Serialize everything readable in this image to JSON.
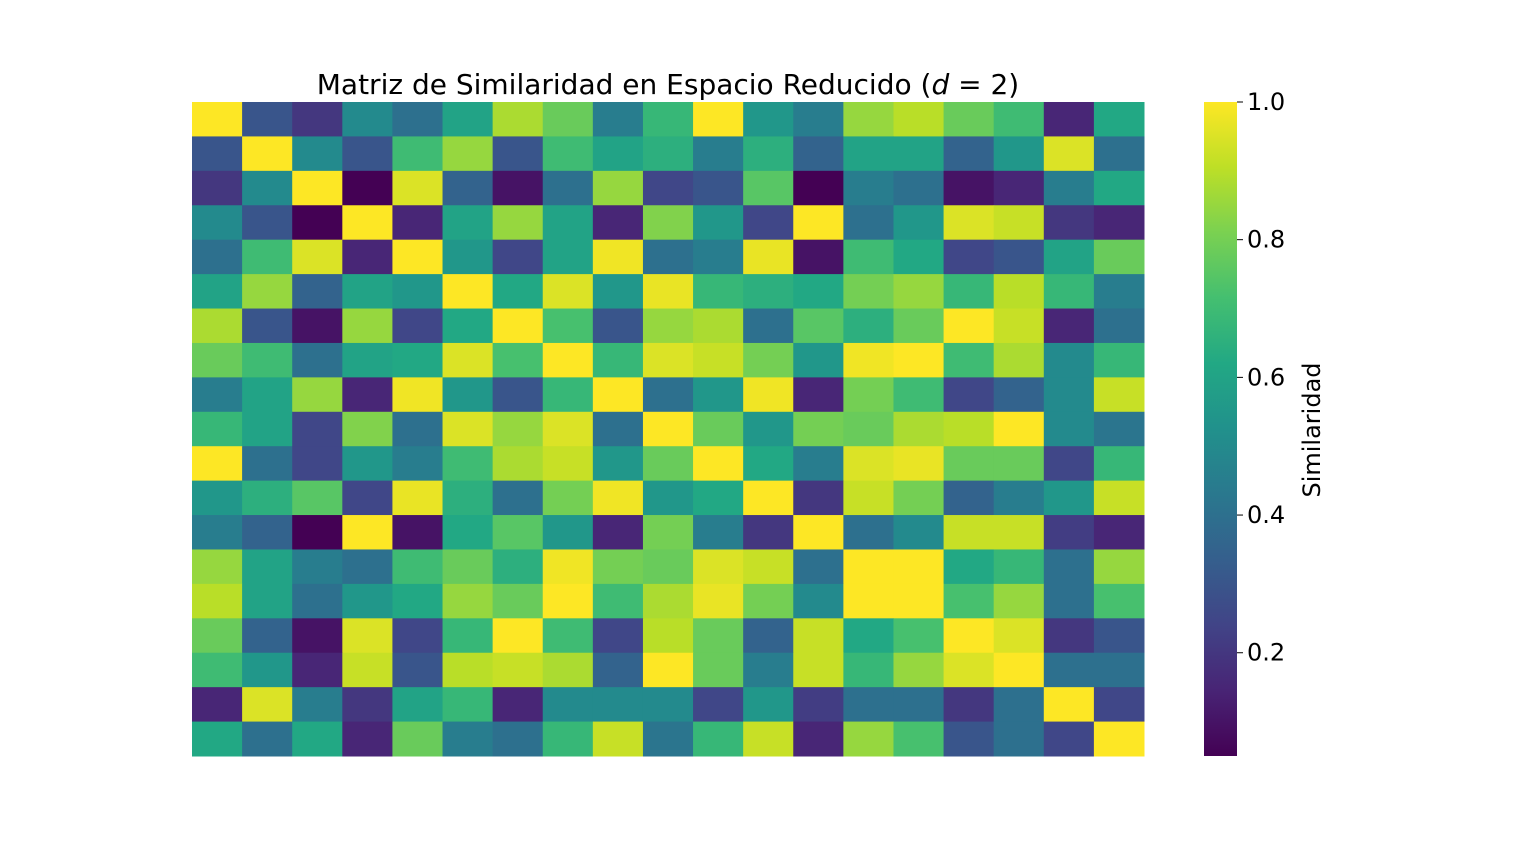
{
  "chart_data": {
    "type": "heatmap",
    "title_prefix": "Matriz de Similaridad en Espacio Reducido (",
    "title_var": "d",
    "title_suffix": " = 2)",
    "xlabel": "",
    "ylabel": "",
    "colormap": "viridis",
    "colorbar": {
      "label": "Similaridad",
      "vmin": 0.05,
      "vmax": 1.0,
      "ticks": [
        0.2,
        0.4,
        0.6,
        0.8,
        1.0
      ],
      "tick_labels": [
        "0.2",
        "0.4",
        "0.6",
        "0.8",
        "1.0"
      ]
    },
    "grid": false,
    "values": [
      [
        1.0,
        0.3,
        0.2,
        0.5,
        0.4,
        0.6,
        0.88,
        0.78,
        0.45,
        0.68,
        1.0,
        0.55,
        0.45,
        0.85,
        0.9,
        0.78,
        0.7,
        0.15,
        0.62
      ],
      [
        0.3,
        1.0,
        0.5,
        0.3,
        0.7,
        0.85,
        0.3,
        0.7,
        0.6,
        0.65,
        0.45,
        0.65,
        0.35,
        0.6,
        0.6,
        0.35,
        0.55,
        0.95,
        0.4
      ],
      [
        0.2,
        0.5,
        1.0,
        0.05,
        0.95,
        0.35,
        0.1,
        0.4,
        0.85,
        0.25,
        0.3,
        0.75,
        0.05,
        0.45,
        0.4,
        0.1,
        0.15,
        0.45,
        0.62
      ],
      [
        0.5,
        0.3,
        0.05,
        1.0,
        0.15,
        0.6,
        0.85,
        0.6,
        0.15,
        0.82,
        0.55,
        0.25,
        1.0,
        0.4,
        0.55,
        0.95,
        0.92,
        0.2,
        0.15
      ],
      [
        0.4,
        0.7,
        0.95,
        0.15,
        1.0,
        0.55,
        0.25,
        0.6,
        0.98,
        0.4,
        0.45,
        0.97,
        0.1,
        0.7,
        0.62,
        0.25,
        0.3,
        0.6,
        0.78
      ],
      [
        0.6,
        0.85,
        0.35,
        0.6,
        0.55,
        1.0,
        0.62,
        0.95,
        0.55,
        0.97,
        0.68,
        0.65,
        0.62,
        0.8,
        0.85,
        0.68,
        0.9,
        0.68,
        0.45
      ],
      [
        0.88,
        0.3,
        0.1,
        0.85,
        0.25,
        0.62,
        1.0,
        0.72,
        0.3,
        0.85,
        0.88,
        0.4,
        0.75,
        0.65,
        0.78,
        1.0,
        0.92,
        0.15,
        0.4
      ],
      [
        0.78,
        0.7,
        0.4,
        0.6,
        0.62,
        0.95,
        0.72,
        1.0,
        0.68,
        0.95,
        0.92,
        0.8,
        0.55,
        0.98,
        1.0,
        0.7,
        0.88,
        0.5,
        0.68
      ],
      [
        0.45,
        0.6,
        0.85,
        0.15,
        0.98,
        0.55,
        0.3,
        0.68,
        1.0,
        0.4,
        0.55,
        0.98,
        0.15,
        0.8,
        0.7,
        0.25,
        0.35,
        0.5,
        0.92
      ],
      [
        0.68,
        0.6,
        0.25,
        0.82,
        0.4,
        0.95,
        0.85,
        0.95,
        0.4,
        1.0,
        0.78,
        0.55,
        0.8,
        0.78,
        0.88,
        0.9,
        1.0,
        0.5,
        0.42
      ],
      [
        1.0,
        0.4,
        0.25,
        0.55,
        0.45,
        0.7,
        0.88,
        0.92,
        0.55,
        0.78,
        1.0,
        0.62,
        0.45,
        0.95,
        0.97,
        0.78,
        0.78,
        0.25,
        0.68
      ],
      [
        0.55,
        0.65,
        0.75,
        0.25,
        0.97,
        0.65,
        0.4,
        0.8,
        0.98,
        0.55,
        0.62,
        1.0,
        0.2,
        0.92,
        0.8,
        0.35,
        0.45,
        0.55,
        0.92
      ],
      [
        0.45,
        0.35,
        0.05,
        1.0,
        0.1,
        0.62,
        0.75,
        0.55,
        0.15,
        0.8,
        0.45,
        0.2,
        1.0,
        0.4,
        0.5,
        0.92,
        0.92,
        0.22,
        0.15
      ],
      [
        0.85,
        0.6,
        0.45,
        0.4,
        0.7,
        0.78,
        0.65,
        0.98,
        0.8,
        0.78,
        0.95,
        0.92,
        0.4,
        1.0,
        1.0,
        0.62,
        0.68,
        0.4,
        0.85
      ],
      [
        0.9,
        0.6,
        0.4,
        0.55,
        0.62,
        0.85,
        0.78,
        1.0,
        0.7,
        0.88,
        0.97,
        0.8,
        0.5,
        1.0,
        1.0,
        0.72,
        0.85,
        0.4,
        0.72
      ],
      [
        0.78,
        0.35,
        0.1,
        0.95,
        0.25,
        0.68,
        1.0,
        0.7,
        0.25,
        0.9,
        0.78,
        0.35,
        0.92,
        0.62,
        0.72,
        1.0,
        0.95,
        0.2,
        0.3
      ],
      [
        0.7,
        0.55,
        0.15,
        0.92,
        0.3,
        0.9,
        0.92,
        0.88,
        0.35,
        1.0,
        0.78,
        0.45,
        0.92,
        0.68,
        0.85,
        0.95,
        1.0,
        0.4,
        0.4
      ],
      [
        0.15,
        0.95,
        0.45,
        0.2,
        0.6,
        0.68,
        0.15,
        0.5,
        0.5,
        0.5,
        0.25,
        0.55,
        0.22,
        0.4,
        0.4,
        0.2,
        0.4,
        1.0,
        0.25
      ],
      [
        0.62,
        0.4,
        0.62,
        0.15,
        0.78,
        0.45,
        0.4,
        0.68,
        0.92,
        0.42,
        0.68,
        0.92,
        0.15,
        0.85,
        0.72,
        0.3,
        0.4,
        0.25,
        1.0
      ]
    ]
  }
}
